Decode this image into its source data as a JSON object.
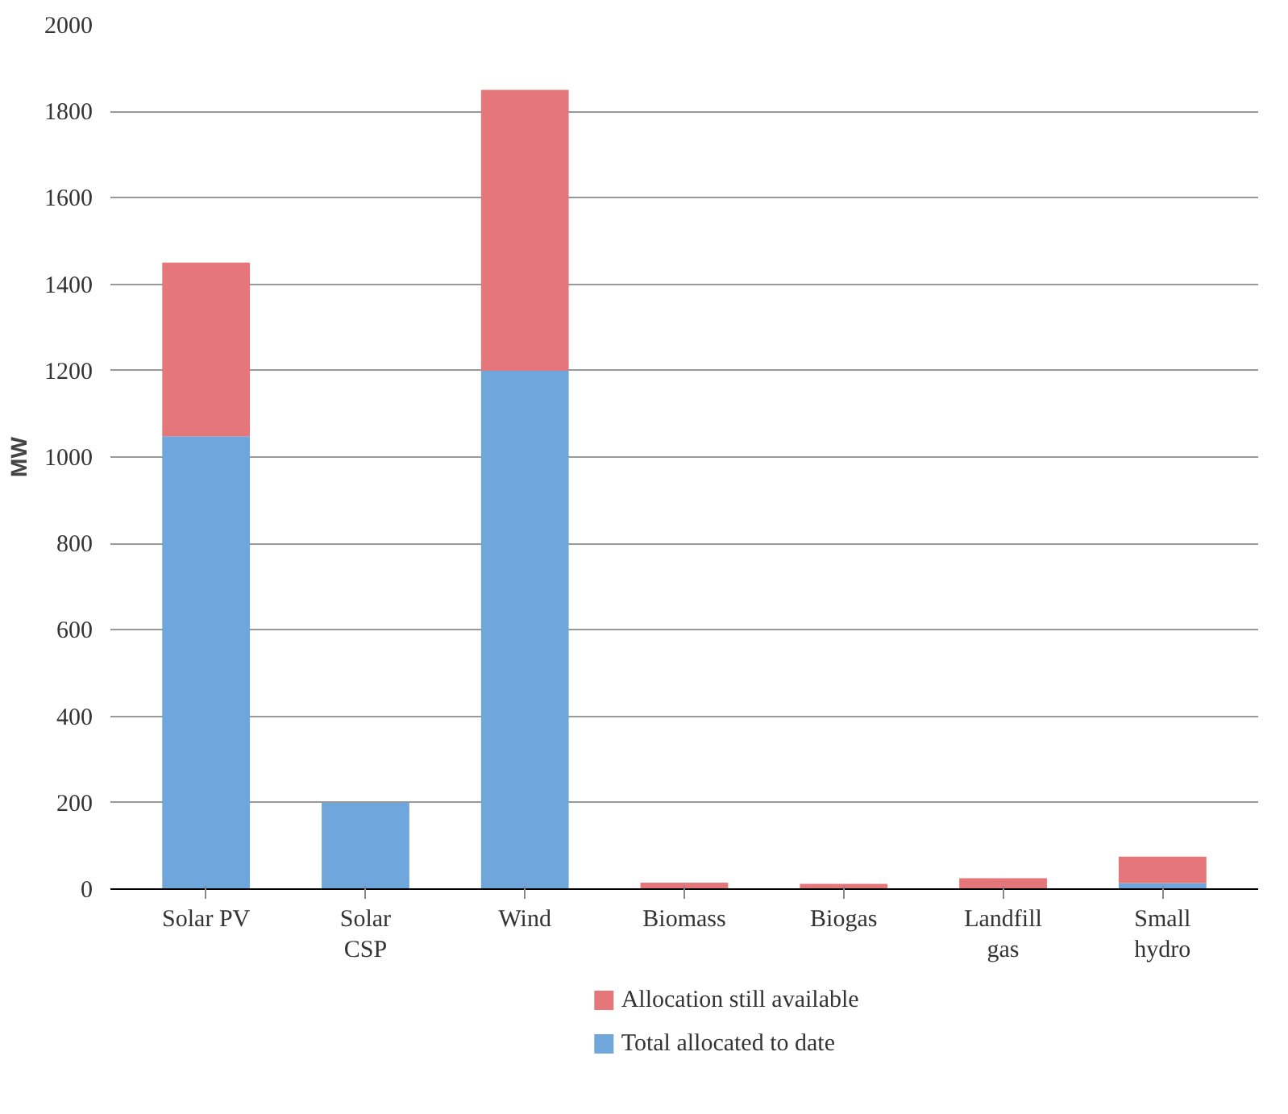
{
  "chart_data": {
    "type": "bar",
    "stacked": true,
    "ylabel": "MW",
    "categories": [
      "Solar PV",
      "Solar\nCSP",
      "Wind",
      "Biomass",
      "Biogas",
      "Landfill\ngas",
      "Small\nhydro"
    ],
    "series": [
      {
        "name": "Total allocated to date",
        "color": "#6fa6dc",
        "values": [
          1048,
          200,
          1200,
          0,
          0,
          0,
          14
        ]
      },
      {
        "name": "Allocation still available",
        "color": "#e5767a",
        "values": [
          402,
          0,
          650,
          15,
          12,
          25,
          61
        ]
      }
    ],
    "ylim": [
      0,
      2000
    ],
    "yticks": [
      0,
      200,
      400,
      600,
      800,
      1000,
      1200,
      1400,
      1600,
      1800,
      2000
    ],
    "grid": "y",
    "legend": "bottom"
  }
}
